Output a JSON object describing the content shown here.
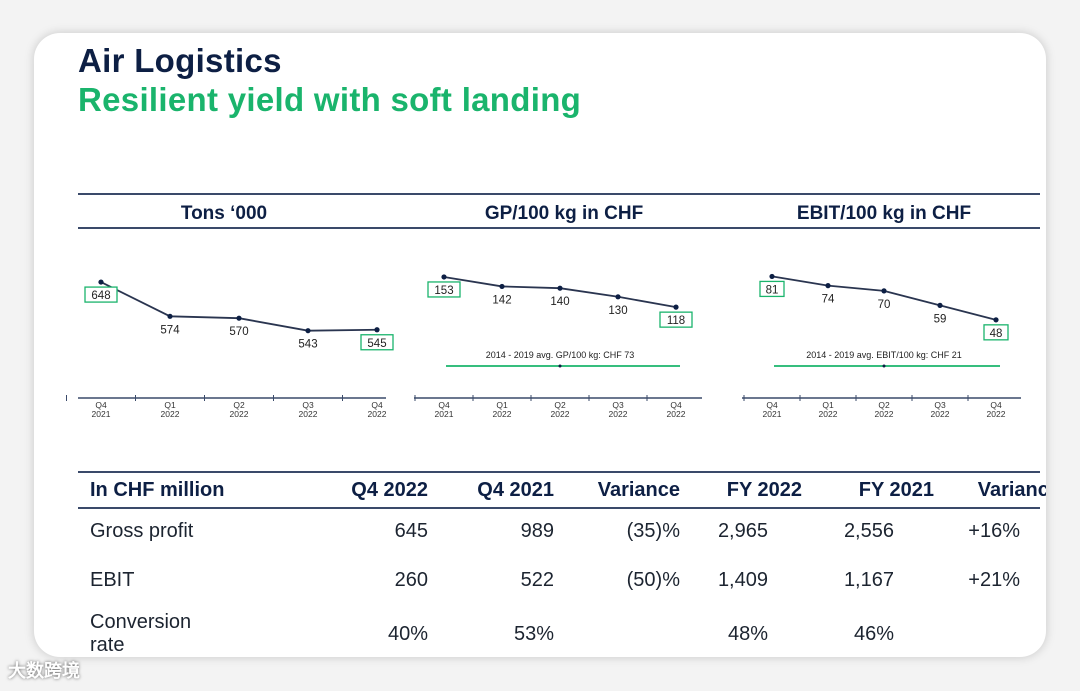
{
  "header": {
    "title": "Air Logistics",
    "subtitle": "Resilient yield with soft landing"
  },
  "colors": {
    "navy": "#0d1f44",
    "green": "#1ab46c",
    "line": "#3a4a6a"
  },
  "chart_data": [
    {
      "type": "line",
      "title": "Tons ‘000",
      "categories": [
        "Q4 2021",
        "Q1 2022",
        "Q2 2022",
        "Q3 2022",
        "Q4 2022"
      ],
      "tick_labels": [
        [
          "Q4",
          "2021"
        ],
        [
          "Q1",
          "2022"
        ],
        [
          "Q2",
          "2022"
        ],
        [
          "Q3",
          "2022"
        ],
        [
          "Q4",
          "2022"
        ]
      ],
      "values": [
        648,
        574,
        570,
        543,
        545
      ],
      "boxed_labels": [
        0,
        4
      ],
      "ylim": [
        430,
        700
      ]
    },
    {
      "type": "line",
      "title": "GP/100 kg in CHF",
      "categories": [
        "Q4 2021",
        "Q1 2022",
        "Q2 2022",
        "Q3 2022",
        "Q4 2022"
      ],
      "tick_labels": [
        [
          "Q4",
          "2021"
        ],
        [
          "Q1",
          "2022"
        ],
        [
          "Q2",
          "2022"
        ],
        [
          "Q3",
          "2022"
        ],
        [
          "Q4",
          "2022"
        ]
      ],
      "values": [
        153,
        142,
        140,
        130,
        118
      ],
      "boxed_labels": [
        0,
        4
      ],
      "reference": {
        "label": "2014 - 2019 avg. GP/100 kg: CHF 73",
        "value": 73
      },
      "ylim": [
        30,
        175
      ]
    },
    {
      "type": "line",
      "title": "EBIT/100 kg in CHF",
      "categories": [
        "Q4 2021",
        "Q1 2022",
        "Q2 2022",
        "Q3 2022",
        "Q4 2022"
      ],
      "tick_labels": [
        [
          "Q4",
          "2021"
        ],
        [
          "Q1",
          "2022"
        ],
        [
          "Q2",
          "2022"
        ],
        [
          "Q3",
          "2022"
        ],
        [
          "Q4",
          "2022"
        ]
      ],
      "values": [
        81,
        74,
        70,
        59,
        48
      ],
      "boxed_labels": [
        0,
        4
      ],
      "reference": {
        "label": "2014 - 2019 avg. EBIT/100 kg: CHF 21",
        "value": 21
      },
      "ylim": [
        0,
        95
      ]
    }
  ],
  "table": {
    "columns": [
      "In CHF million",
      "Q4 2022",
      "Q4 2021",
      "Variance",
      "FY 2022",
      "FY 2021",
      "Variance"
    ],
    "rows": [
      {
        "label": "Gross profit",
        "q4_2022": "645",
        "q4_2021": "989",
        "var_q": "(35)%",
        "fy_2022": "2,965",
        "fy_2021": "2,556",
        "var_fy": "+16%"
      },
      {
        "label": "EBIT",
        "q4_2022": "260",
        "q4_2021": "522",
        "var_q": "(50)%",
        "fy_2022": "1,409",
        "fy_2021": "1,167",
        "var_fy": "+21%"
      },
      {
        "label_line1": "Conversion",
        "label_line2": "rate",
        "q4_2022": "40%",
        "q4_2021": "53%",
        "var_q": "",
        "fy_2022": "48%",
        "fy_2021": "46%",
        "var_fy": ""
      }
    ]
  },
  "watermark": "大数跨境"
}
